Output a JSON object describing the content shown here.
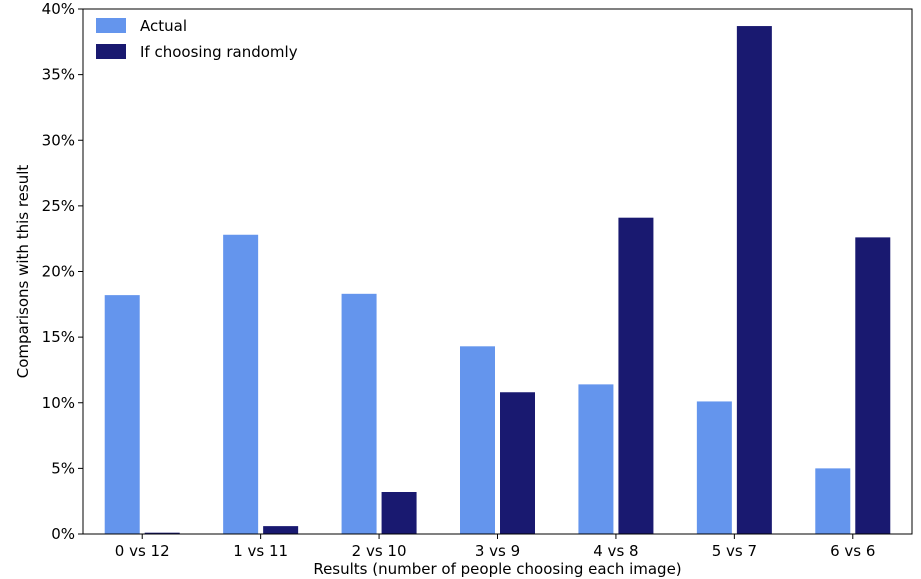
{
  "chart_data": {
    "type": "bar",
    "title": "",
    "xlabel": "Results (number of people choosing each image)",
    "ylabel": "Comparisons with this result",
    "categories": [
      "0 vs 12",
      "1 vs 11",
      "2 vs 10",
      "3 vs 9",
      "4 vs 8",
      "5 vs 7",
      "6 vs 6"
    ],
    "series": [
      {
        "name": "Actual",
        "color": "#6495ED",
        "values": [
          18.2,
          22.8,
          18.3,
          14.3,
          11.4,
          10.1,
          5.0
        ]
      },
      {
        "name": "If choosing randomly",
        "color": "#191970",
        "values": [
          0.1,
          0.6,
          3.2,
          10.8,
          24.1,
          38.7,
          22.6
        ]
      }
    ],
    "ylim": [
      0,
      40
    ],
    "yticks": [
      0,
      5,
      10,
      15,
      20,
      25,
      30,
      35,
      40
    ],
    "ytick_labels": [
      "0%",
      "5%",
      "10%",
      "15%",
      "20%",
      "25%",
      "30%",
      "35%",
      "40%"
    ],
    "legend_position": "top-left",
    "grid": false
  }
}
